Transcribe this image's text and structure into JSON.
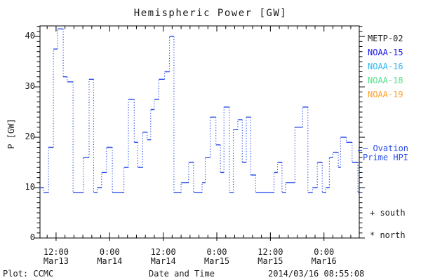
{
  "title": "Hemispheric Power [GW]",
  "axes": {
    "y_label": "P [GW]",
    "x_label": "Date and Time",
    "y_ticks": [
      "0",
      "10",
      "20",
      "30",
      "40"
    ],
    "x_ticks": [
      {
        "time": "12:00",
        "date": "Mar13"
      },
      {
        "time": "0:00",
        "date": "Mar14"
      },
      {
        "time": "12:00",
        "date": "Mar14"
      },
      {
        "time": "0:00",
        "date": "Mar15"
      },
      {
        "time": "12:00",
        "date": "Mar15"
      },
      {
        "time": "0:00",
        "date": "Mar16"
      }
    ]
  },
  "legend": {
    "satellites": [
      {
        "label": "METP-02",
        "color": "#1a1a1a"
      },
      {
        "label": "NOAA-15",
        "color": "#1414e8"
      },
      {
        "label": "NOAA-16",
        "color": "#2eb8f0"
      },
      {
        "label": "NOAA-18",
        "color": "#52e08a"
      },
      {
        "label": "NOAA-19",
        "color": "#ffa028"
      }
    ],
    "ovation": {
      "line1": "— Ovation",
      "line2": "Prime HPI",
      "color": "#2a4de8"
    },
    "south": "+ south",
    "north": "* north"
  },
  "footer": {
    "left": "Plot: CCMC",
    "right": "2014/03/16 08:55:08"
  },
  "chart_data": {
    "type": "line",
    "subtype": "step",
    "title": "Hemispheric Power [GW]",
    "xlabel": "Date and Time",
    "ylabel": "P [GW]",
    "x_unit": "hours since 2014-03-13 00:00 UT",
    "xlim": [
      8.4,
      79.9
    ],
    "ylim": [
      0,
      42.1
    ],
    "x_major_ticks": [
      12,
      24,
      36,
      48,
      60,
      72
    ],
    "x_minor_step": 2,
    "y_major_ticks": [
      0,
      10,
      20,
      30,
      40
    ],
    "y_minor_step": 1,
    "grid": false,
    "legend_position": "right-outside",
    "series": [
      {
        "name": "Ovation Prime HPI",
        "color": "#2a4de8",
        "line_style": "horizontal steps solid, vertical connectors dotted",
        "points": [
          [
            8.4,
            10
          ],
          [
            9.2,
            9
          ],
          [
            10.3,
            18
          ],
          [
            11.4,
            37.5
          ],
          [
            12.3,
            41.5
          ],
          [
            13.6,
            32
          ],
          [
            14.5,
            31
          ],
          [
            15.8,
            9
          ],
          [
            18.1,
            16
          ],
          [
            19.4,
            31.5
          ],
          [
            20.4,
            9
          ],
          [
            21.2,
            10
          ],
          [
            22.2,
            13
          ],
          [
            23.3,
            18
          ],
          [
            24.6,
            9
          ],
          [
            27.2,
            14
          ],
          [
            28.2,
            27.5
          ],
          [
            29.5,
            19
          ],
          [
            30.3,
            14
          ],
          [
            31.4,
            21
          ],
          [
            32.4,
            19.5
          ],
          [
            33.2,
            25.5
          ],
          [
            34.0,
            27.5
          ],
          [
            35.0,
            31.5
          ],
          [
            36.3,
            33
          ],
          [
            37.4,
            40
          ],
          [
            38.4,
            9
          ],
          [
            40.0,
            11
          ],
          [
            41.7,
            15
          ],
          [
            42.8,
            9
          ],
          [
            44.7,
            11
          ],
          [
            45.4,
            16
          ],
          [
            46.5,
            24
          ],
          [
            47.8,
            18.5
          ],
          [
            48.8,
            13
          ],
          [
            49.6,
            26
          ],
          [
            50.8,
            9
          ],
          [
            51.7,
            21.5
          ],
          [
            52.7,
            23.5
          ],
          [
            53.7,
            15
          ],
          [
            54.6,
            24
          ],
          [
            55.6,
            12.5
          ],
          [
            56.7,
            9
          ],
          [
            60.8,
            13
          ],
          [
            61.6,
            15
          ],
          [
            62.6,
            9
          ],
          [
            63.4,
            11
          ],
          [
            65.5,
            22
          ],
          [
            67.2,
            26
          ],
          [
            68.4,
            9
          ],
          [
            69.4,
            10
          ],
          [
            70.5,
            15
          ],
          [
            71.6,
            9
          ],
          [
            72.4,
            10
          ],
          [
            73.2,
            16
          ],
          [
            74.0,
            17
          ],
          [
            75.2,
            14
          ],
          [
            75.7,
            20
          ],
          [
            77.0,
            19
          ],
          [
            78.3,
            15
          ],
          [
            79.6,
            9
          ]
        ]
      }
    ]
  }
}
